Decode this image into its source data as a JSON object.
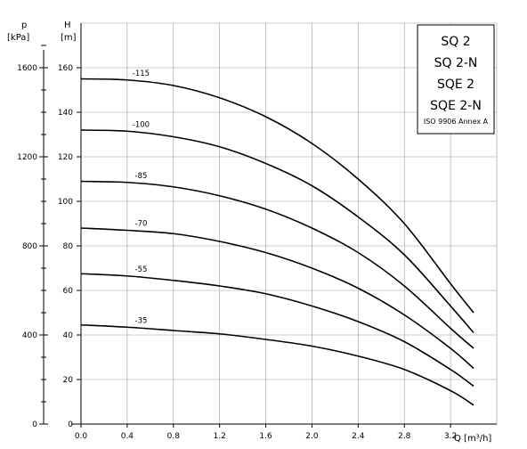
{
  "chart_data": {
    "type": "line",
    "title": "",
    "xlabel": "Q [m³/h]",
    "ylabel": "H\n[m]",
    "y2label": "p\n[kPa]",
    "xlim": [
      0,
      3.6
    ],
    "ylim": [
      0,
      160
    ],
    "y2lim": [
      0,
      1600
    ],
    "x_ticks": [
      "0.0",
      "0.4",
      "0.8",
      "1.2",
      "1.6",
      "2.0",
      "2.4",
      "2.8",
      "3.2"
    ],
    "y_ticks": [
      "0",
      "20",
      "40",
      "60",
      "80",
      "100",
      "120",
      "140",
      "160"
    ],
    "y2_ticks": [
      "0",
      "400",
      "800",
      "1200",
      "1600"
    ],
    "grid": true,
    "legend": {
      "position": "top-right",
      "lines": [
        "SQ 2",
        "SQ 2-N",
        "SQE 2",
        "SQE 2-N"
      ],
      "note": "ISO 9906 Annex A"
    },
    "series": [
      {
        "name": "-115",
        "x": [
          0,
          0.4,
          0.8,
          1.2,
          1.6,
          2.0,
          2.4,
          2.8,
          3.2,
          3.4
        ],
        "y": [
          155,
          154.5,
          152,
          146.5,
          138,
          126,
          110,
          90,
          63,
          50
        ]
      },
      {
        "name": "-100",
        "x": [
          0,
          0.4,
          0.8,
          1.2,
          1.6,
          2.0,
          2.4,
          2.8,
          3.2,
          3.4
        ],
        "y": [
          132,
          131.5,
          129,
          124.5,
          117,
          107,
          93,
          76,
          53,
          41
        ]
      },
      {
        "name": "-85",
        "x": [
          0,
          0.4,
          0.8,
          1.2,
          1.6,
          2.0,
          2.4,
          2.8,
          3.2,
          3.4
        ],
        "y": [
          109,
          108.5,
          106.5,
          102.5,
          96.5,
          88,
          77,
          62,
          43,
          34
        ]
      },
      {
        "name": "-70",
        "x": [
          0,
          0.4,
          0.8,
          1.2,
          1.6,
          2.0,
          2.4,
          2.8,
          3.2,
          3.4
        ],
        "y": [
          88,
          87,
          85.5,
          82,
          77,
          70,
          61,
          49,
          34,
          25
        ]
      },
      {
        "name": "-55",
        "x": [
          0,
          0.4,
          0.8,
          1.2,
          1.6,
          2.0,
          2.4,
          2.8,
          3.2,
          3.4
        ],
        "y": [
          67.5,
          66.5,
          64.5,
          62,
          58.5,
          53,
          46,
          37,
          24.5,
          17
        ]
      },
      {
        "name": "-35",
        "x": [
          0,
          0.4,
          0.8,
          1.2,
          1.6,
          2.0,
          2.4,
          2.8,
          3.2,
          3.4
        ],
        "y": [
          44.5,
          43.5,
          42,
          40.5,
          38,
          35,
          30.5,
          24.5,
          15,
          8.5
        ]
      }
    ]
  }
}
